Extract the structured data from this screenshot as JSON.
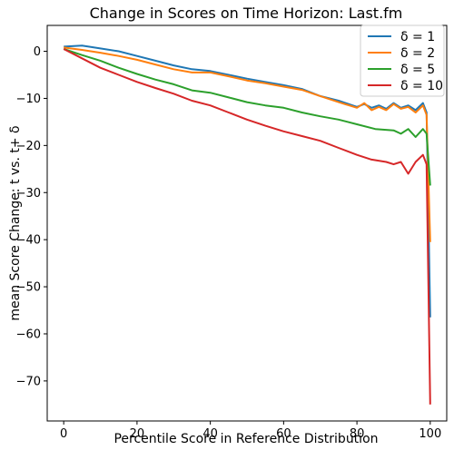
{
  "chart_data": {
    "type": "line",
    "title": "Change in Scores on Time Horizon: Last.fm",
    "xlabel": "Percentile Score in Reference Distribution",
    "ylabel": "mean Score Change: t vs. t+ δ",
    "xlim": [
      -4.5,
      104.5
    ],
    "ylim": [
      -78.5,
      5.5
    ],
    "xticks": [
      0,
      20,
      40,
      60,
      80,
      100
    ],
    "yticks": [
      0,
      -10,
      -20,
      -30,
      -40,
      -50,
      -60,
      -70
    ],
    "xtick_labels": [
      "0",
      "20",
      "40",
      "60",
      "80",
      "100"
    ],
    "ytick_labels": [
      "0",
      "−10",
      "−20",
      "−30",
      "−40",
      "−50",
      "−60",
      "−70"
    ],
    "grid": false,
    "legend_position": "top-right",
    "series": [
      {
        "name": "δ = 1",
        "color": "#1f77b4",
        "x": [
          0,
          5,
          10,
          15,
          20,
          25,
          30,
          35,
          40,
          45,
          50,
          55,
          60,
          65,
          70,
          75,
          80,
          82,
          84,
          86,
          88,
          90,
          92,
          94,
          96,
          98,
          99,
          100
        ],
        "y": [
          1.0,
          1.2,
          0.6,
          0.0,
          -1.0,
          -2.0,
          -3.0,
          -3.8,
          -4.2,
          -5.0,
          -5.8,
          -6.5,
          -7.2,
          -8.0,
          -9.5,
          -10.5,
          -11.8,
          -11.2,
          -12.0,
          -11.5,
          -12.2,
          -11.0,
          -12.0,
          -11.5,
          -12.5,
          -11.0,
          -13.0,
          -56.5
        ]
      },
      {
        "name": "δ = 2",
        "color": "#ff7f0e",
        "x": [
          0,
          5,
          10,
          15,
          20,
          25,
          30,
          35,
          40,
          45,
          50,
          55,
          60,
          65,
          70,
          75,
          80,
          82,
          84,
          86,
          88,
          90,
          92,
          94,
          96,
          98,
          99,
          100
        ],
        "y": [
          0.8,
          0.3,
          -0.3,
          -1.0,
          -1.8,
          -2.8,
          -3.8,
          -4.5,
          -4.5,
          -5.3,
          -6.2,
          -6.8,
          -7.5,
          -8.2,
          -9.5,
          -10.8,
          -12.0,
          -11.0,
          -12.5,
          -11.8,
          -12.5,
          -11.2,
          -12.2,
          -11.8,
          -13.0,
          -11.5,
          -13.5,
          -40.5
        ]
      },
      {
        "name": "δ = 5",
        "color": "#2ca02c",
        "x": [
          0,
          5,
          10,
          15,
          20,
          25,
          30,
          35,
          40,
          45,
          50,
          55,
          60,
          65,
          70,
          75,
          80,
          85,
          90,
          92,
          94,
          96,
          98,
          99,
          100
        ],
        "y": [
          0.5,
          -0.8,
          -2.0,
          -3.5,
          -4.8,
          -6.0,
          -7.0,
          -8.3,
          -8.8,
          -9.8,
          -10.8,
          -11.5,
          -12.0,
          -13.0,
          -13.8,
          -14.5,
          -15.5,
          -16.5,
          -16.8,
          -17.5,
          -16.5,
          -18.2,
          -16.5,
          -17.5,
          -28.5
        ]
      },
      {
        "name": "δ = 10",
        "color": "#d62728",
        "x": [
          0,
          5,
          10,
          15,
          20,
          25,
          30,
          35,
          40,
          45,
          50,
          55,
          60,
          65,
          70,
          75,
          80,
          84,
          88,
          90,
          92,
          94,
          96,
          98,
          99,
          100
        ],
        "y": [
          0.5,
          -1.5,
          -3.5,
          -5.0,
          -6.5,
          -7.8,
          -9.0,
          -10.5,
          -11.5,
          -13.0,
          -14.5,
          -15.8,
          -17.0,
          -18.0,
          -19.0,
          -20.5,
          -22.0,
          -23.0,
          -23.5,
          -24.0,
          -23.5,
          -26.0,
          -23.5,
          -22.0,
          -24.0,
          -75.0
        ]
      }
    ]
  }
}
